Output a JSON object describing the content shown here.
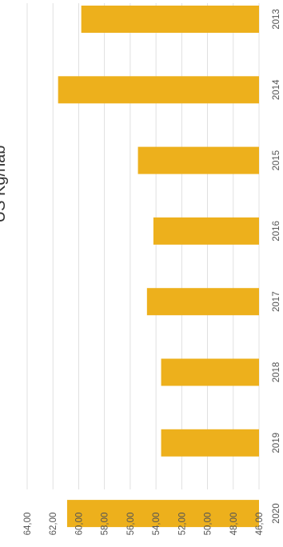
{
  "chart_data": {
    "type": "bar",
    "title": "US Kg/hab",
    "categories": [
      "2013",
      "2014",
      "2015",
      "2016",
      "2017",
      "2018",
      "2019",
      "2020"
    ],
    "values": [
      59.8,
      61.6,
      55.4,
      54.2,
      54.7,
      53.6,
      53.6,
      60.9
    ],
    "ylim": [
      46,
      64
    ],
    "yticks": [
      "46,00",
      "48,00",
      "50,00",
      "52,00",
      "54,00",
      "56,00",
      "58,00",
      "60,00",
      "62,00",
      "64,00"
    ],
    "grid": true,
    "bar_color": "#EDB01C",
    "grid_color": "#d9d9d9"
  }
}
